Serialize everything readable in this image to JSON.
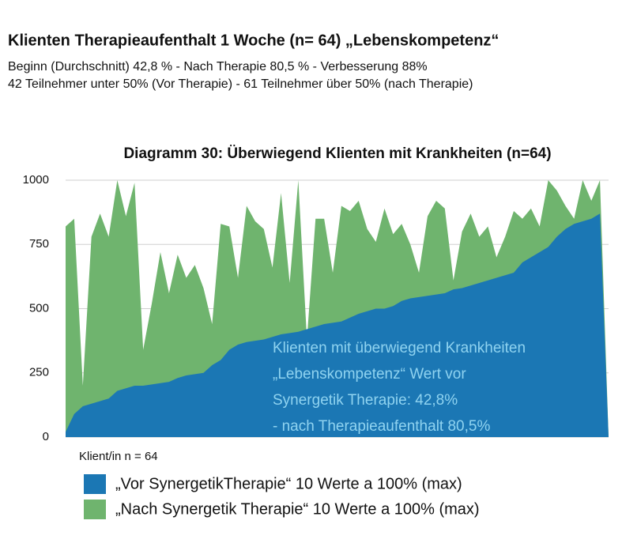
{
  "header": {
    "title": "Klienten Therapieaufenthalt 1 Woche (n= 64) „Lebenskompetenz“",
    "lines": [
      "Beginn (Durchschnitt) 42,8 % - Nach Therapie 80,5 % - Verbesserung 88%",
      "42 Teilnehmer unter 50% (Vor Therapie) - 61 Teilnehmer über 50% (nach Therapie)"
    ]
  },
  "chart_data": {
    "type": "area",
    "title": "Diagramm 30: Überwiegend Klienten mit Krankheiten (n=64)",
    "x_label": "Klient/in n = 64",
    "annotation": [
      "Klienten mit überwiegend Krankheiten",
      "„Lebenskompetenz“  Wert vor",
      "Synergetik Therapie: 42,8%",
      "- nach Therapieaufenthalt 80,5%"
    ],
    "ylim": [
      0,
      1000
    ],
    "yticks": [
      0,
      250,
      500,
      750,
      1000
    ],
    "grid": true,
    "series": [
      {
        "name": "„Nach Synergetik Therapie“  10 Werte a 100% (max)",
        "color": "#6fb46e",
        "values": [
          820,
          850,
          200,
          780,
          870,
          780,
          1000,
          860,
          990,
          340,
          520,
          720,
          560,
          710,
          620,
          670,
          580,
          440,
          830,
          820,
          620,
          900,
          840,
          810,
          660,
          950,
          600,
          1000,
          380,
          850,
          850,
          640,
          900,
          880,
          920,
          810,
          760,
          890,
          790,
          830,
          750,
          640,
          860,
          920,
          890,
          610,
          800,
          870,
          780,
          820,
          700,
          780,
          880,
          850,
          890,
          820,
          1000,
          960,
          900,
          850,
          1000,
          920,
          1000,
          0
        ]
      },
      {
        "name": "„Vor SynergetikTherapie“ 10 Werte a 100% (max)",
        "color": "#1b77b4",
        "values": [
          20,
          90,
          120,
          130,
          140,
          150,
          180,
          190,
          200,
          200,
          205,
          210,
          215,
          230,
          240,
          245,
          250,
          280,
          300,
          340,
          360,
          370,
          375,
          380,
          390,
          400,
          405,
          410,
          420,
          430,
          440,
          445,
          450,
          465,
          480,
          490,
          500,
          500,
          510,
          530,
          540,
          545,
          550,
          555,
          560,
          575,
          580,
          590,
          600,
          610,
          620,
          630,
          640,
          680,
          700,
          720,
          740,
          780,
          810,
          830,
          840,
          850,
          870,
          0
        ]
      }
    ]
  }
}
